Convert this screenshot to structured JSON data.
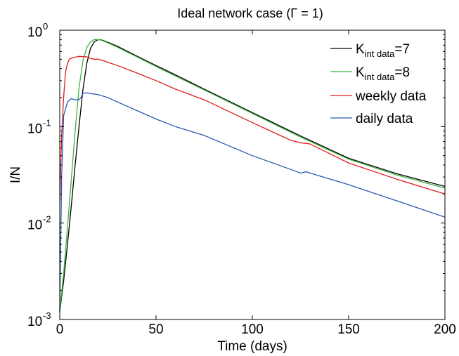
{
  "chart_data": {
    "type": "line",
    "title": "Ideal network case (Γ = 1)",
    "xlabel": "Time (days)",
    "ylabel": "I/N",
    "xlim": [
      0,
      200
    ],
    "ylim": [
      0.001,
      1
    ],
    "yscale": "log",
    "grid": false,
    "legend_position": "top-right",
    "x_ticks": [
      {
        "value": 0,
        "label": "0"
      },
      {
        "value": 50,
        "label": "50"
      },
      {
        "value": 100,
        "label": "100"
      },
      {
        "value": 150,
        "label": "150"
      },
      {
        "value": 200,
        "label": "200"
      }
    ],
    "y_ticks": [
      {
        "value": 0.001,
        "base": "10",
        "exp": "-3"
      },
      {
        "value": 0.01,
        "base": "10",
        "exp": "-2"
      },
      {
        "value": 0.1,
        "base": "10",
        "exp": "-1"
      },
      {
        "value": 1,
        "base": "10",
        "exp": "0"
      }
    ],
    "series": [
      {
        "name": "K",
        "name_sub": "int data",
        "name_suffix": "=7",
        "color": "#000000",
        "points": [
          [
            0,
            0.0012
          ],
          [
            2,
            0.0025
          ],
          [
            4,
            0.006
          ],
          [
            6,
            0.015
          ],
          [
            8,
            0.04
          ],
          [
            10,
            0.1
          ],
          [
            12,
            0.24
          ],
          [
            14,
            0.45
          ],
          [
            16,
            0.65
          ],
          [
            18,
            0.76
          ],
          [
            20,
            0.8
          ],
          [
            22,
            0.79
          ],
          [
            25,
            0.75
          ],
          [
            30,
            0.68
          ],
          [
            40,
            0.54
          ],
          [
            50,
            0.43
          ],
          [
            60,
            0.345
          ],
          [
            75,
            0.245
          ],
          [
            100,
            0.14
          ],
          [
            125,
            0.08
          ],
          [
            150,
            0.047
          ],
          [
            175,
            0.0325
          ],
          [
            200,
            0.024
          ]
        ]
      },
      {
        "name": "K",
        "name_sub": "int data",
        "name_suffix": "=8",
        "color": "#3cb43c",
        "points": [
          [
            0,
            0.0012
          ],
          [
            2,
            0.003
          ],
          [
            4,
            0.009
          ],
          [
            6,
            0.028
          ],
          [
            8,
            0.09
          ],
          [
            10,
            0.25
          ],
          [
            12,
            0.48
          ],
          [
            14,
            0.66
          ],
          [
            16,
            0.76
          ],
          [
            18,
            0.8
          ],
          [
            20,
            0.8
          ],
          [
            22,
            0.78
          ],
          [
            25,
            0.74
          ],
          [
            30,
            0.665
          ],
          [
            40,
            0.53
          ],
          [
            50,
            0.42
          ],
          [
            60,
            0.335
          ],
          [
            75,
            0.24
          ],
          [
            100,
            0.137
          ],
          [
            125,
            0.078
          ],
          [
            150,
            0.046
          ],
          [
            175,
            0.0315
          ],
          [
            200,
            0.023
          ]
        ]
      },
      {
        "name": "weekly data",
        "color": "#e41a1c",
        "points": [
          [
            0,
            0.017
          ],
          [
            1,
            0.08
          ],
          [
            2,
            0.2
          ],
          [
            3,
            0.37
          ],
          [
            4,
            0.45
          ],
          [
            5,
            0.5
          ],
          [
            7,
            0.52
          ],
          [
            10,
            0.535
          ],
          [
            14,
            0.53
          ],
          [
            16,
            0.51
          ],
          [
            18,
            0.5
          ],
          [
            20,
            0.5
          ],
          [
            23,
            0.48
          ],
          [
            25,
            0.465
          ],
          [
            30,
            0.43
          ],
          [
            40,
            0.36
          ],
          [
            50,
            0.3
          ],
          [
            60,
            0.245
          ],
          [
            75,
            0.19
          ],
          [
            100,
            0.11
          ],
          [
            120,
            0.072
          ],
          [
            125,
            0.068
          ],
          [
            128,
            0.067
          ],
          [
            130,
            0.066
          ],
          [
            150,
            0.042
          ],
          [
            175,
            0.0285
          ],
          [
            200,
            0.02
          ]
        ]
      },
      {
        "name": "daily data",
        "color": "#2c59b0",
        "points": [
          [
            0,
            0.0012
          ],
          [
            1,
            0.03
          ],
          [
            2,
            0.13
          ],
          [
            4,
            0.18
          ],
          [
            6,
            0.195
          ],
          [
            8,
            0.19
          ],
          [
            10,
            0.19
          ],
          [
            11,
            0.2
          ],
          [
            12,
            0.22
          ],
          [
            14,
            0.225
          ],
          [
            16,
            0.22
          ],
          [
            20,
            0.215
          ],
          [
            25,
            0.2
          ],
          [
            30,
            0.18
          ],
          [
            40,
            0.147
          ],
          [
            50,
            0.12
          ],
          [
            60,
            0.1
          ],
          [
            75,
            0.081
          ],
          [
            100,
            0.05
          ],
          [
            120,
            0.036
          ],
          [
            125,
            0.033
          ],
          [
            128,
            0.034
          ],
          [
            130,
            0.033
          ],
          [
            150,
            0.025
          ],
          [
            175,
            0.017
          ],
          [
            200,
            0.0115
          ]
        ]
      }
    ]
  }
}
